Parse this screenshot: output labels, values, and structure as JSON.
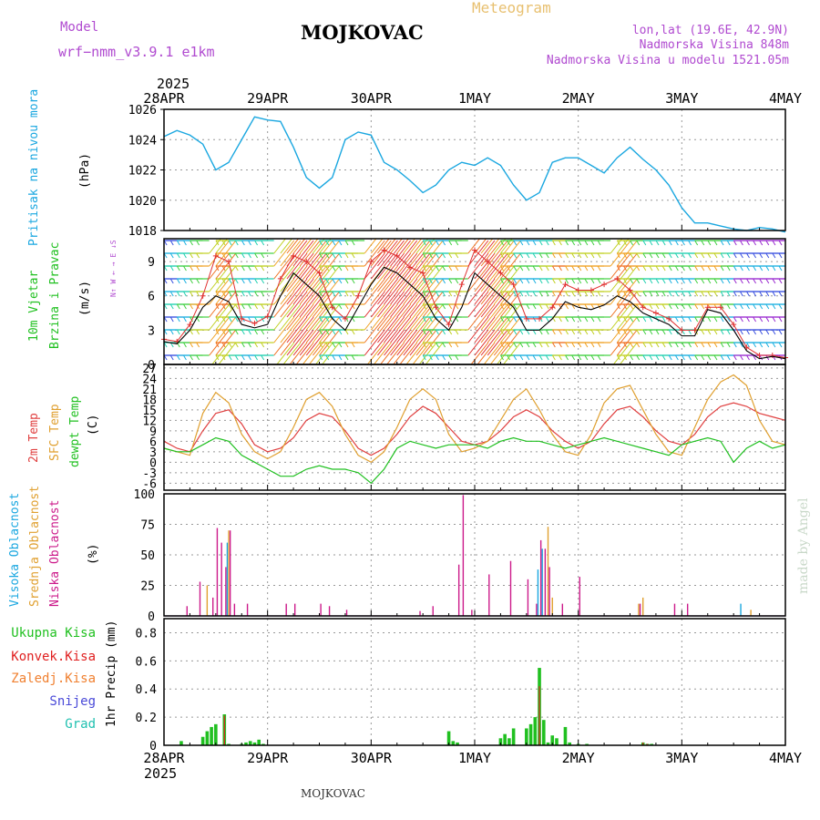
{
  "header": {
    "model_label": "Model",
    "model_name": "wrf−nmm_v3.9.1  e1km",
    "station": "MOJKOVAC",
    "title": "Meteogram",
    "coords": "lon,lat (19.6E, 42.9N)",
    "elevation": "Nadmorska Visina 848m",
    "model_elevation": "Nadmorska Visina u modelu 1521.05m"
  },
  "footer": {
    "station": "MOJKOVAC",
    "credit": "made by Angel"
  },
  "colors": {
    "pressure": "#1aa7e0",
    "title_purple": "#b04ad0",
    "title_gold": "#e8c070",
    "wind_speed": "#000000",
    "wind_gust": "#e03030",
    "temp_2m": "#e04040",
    "temp_sfc": "#e0a030",
    "dewpoint": "#20c020",
    "cloud_high": "#1aa7e0",
    "cloud_mid": "#e0a030",
    "cloud_low": "#cc1a8a",
    "precip_total": "#20c020",
    "precip_conv": "#e02020",
    "precip_freezing": "#f08030",
    "precip_snow": "#4a4ad8",
    "precip_hail": "#20c0b0"
  },
  "x_axis": {
    "year": "2025",
    "ticks": [
      "28APR",
      "29APR",
      "30APR",
      "1MAY",
      "2MAY",
      "3MAY",
      "4MAY"
    ]
  },
  "panels": {
    "pressure": {
      "label": "Pritisak na nivou mora",
      "unit": "(hPa)",
      "ticks": [
        "1018",
        "1020",
        "1022",
        "1024",
        "1026"
      ]
    },
    "wind": {
      "label1": "10m Vjetar",
      "label2": "Brzina i Pravac",
      "unit": "(m/s)",
      "ticks": [
        "0",
        "3",
        "6",
        "9"
      ],
      "compass": "N↑  W ← → E  ↓S"
    },
    "temperature": {
      "label1": "2m Temp",
      "label2": "SFC Temp",
      "label3": "dewpt Temp",
      "unit": "(C)",
      "ticks": [
        "-6",
        "-3",
        "0",
        "3",
        "6",
        "9",
        "12",
        "15",
        "18",
        "21",
        "24",
        "27"
      ]
    },
    "clouds": {
      "label1": "Visoka Oblacnost",
      "label2": "Srednja Oblacnost",
      "label3": "Niska Oblacnost",
      "unit": "(%)",
      "ticks": [
        "0",
        "25",
        "50",
        "75",
        "100"
      ]
    },
    "precip": {
      "legend": [
        "Ukupna Kisa",
        "Konvek.Kisa",
        "Zaledj.Kisa",
        "Snijeg",
        "Grad"
      ],
      "unit": "1hr Precip (mm)",
      "ticks": [
        "0",
        "0.2",
        "0.4",
        "0.6",
        "0.8"
      ]
    }
  },
  "chart_data": [
    {
      "type": "line",
      "title": "",
      "ylabel": "(hPa)",
      "ylim": [
        1018,
        1026
      ],
      "x_hours": [
        0,
        3,
        6,
        9,
        12,
        15,
        18,
        21,
        24,
        27,
        30,
        33,
        36,
        39,
        42,
        45,
        48,
        51,
        54,
        57,
        60,
        63,
        66,
        69,
        72,
        75,
        78,
        81,
        84,
        87,
        90,
        93,
        96,
        99,
        102,
        105,
        108,
        111,
        114,
        117,
        120,
        123,
        126,
        129,
        132,
        135,
        138,
        141,
        144
      ],
      "series": [
        {
          "values": [
            1024.2,
            1024.6,
            1024.3,
            1023.7,
            1022.0,
            1022.5,
            1024.0,
            1025.5,
            1025.3,
            1025.2,
            1023.5,
            1021.5,
            1020.8,
            1021.5,
            1024.0,
            1024.5,
            1024.3,
            1022.5,
            1022.0,
            1021.3,
            1020.5,
            1021.0,
            1022.0,
            1022.5,
            1022.3,
            1022.8,
            1022.3,
            1021.0,
            1020.0,
            1020.5,
            1022.5,
            1022.8,
            1022.8,
            1022.3,
            1021.8,
            1022.8,
            1023.5,
            1022.7,
            1022.0,
            1021.0,
            1019.5,
            1018.5,
            1018.5,
            1018.3,
            1018.1,
            1018.0,
            1018.2,
            1018.1,
            1017.9
          ]
        }
      ]
    },
    {
      "type": "line",
      "title": "",
      "ylabel": "(m/s)",
      "ylim": [
        0,
        11
      ],
      "x_hours": [
        0,
        3,
        6,
        9,
        12,
        15,
        18,
        21,
        24,
        27,
        30,
        33,
        36,
        39,
        42,
        45,
        48,
        51,
        54,
        57,
        60,
        63,
        66,
        69,
        72,
        75,
        78,
        81,
        84,
        87,
        90,
        93,
        96,
        99,
        102,
        105,
        108,
        111,
        114,
        117,
        120,
        123,
        126,
        129,
        132,
        135,
        138,
        141,
        144
      ],
      "series": [
        {
          "name": "wind speed",
          "values": [
            2,
            1.8,
            3,
            5,
            6,
            5.5,
            3.5,
            3.2,
            3.5,
            6,
            8,
            7,
            6,
            4,
            3,
            5,
            7,
            8.5,
            8,
            7,
            6,
            4,
            3,
            5,
            8,
            7,
            6,
            5,
            3,
            3,
            4,
            5.5,
            5,
            4.8,
            5.2,
            6,
            5.5,
            4.5,
            4,
            3.5,
            2.5,
            2.5,
            4.8,
            4.5,
            3,
            1.2,
            0.5,
            0.7,
            0.5
          ]
        },
        {
          "name": "wind gust",
          "values": [
            2.2,
            2,
            3.5,
            6,
            9.5,
            9,
            4,
            3.6,
            4.2,
            7.5,
            9.5,
            9,
            8,
            5,
            4,
            6,
            9,
            10,
            9.5,
            8.5,
            8,
            5,
            3.5,
            7,
            10,
            9,
            8,
            7,
            4,
            4,
            5,
            7,
            6.5,
            6.5,
            7,
            7.5,
            6.5,
            5,
            4.5,
            4,
            3,
            3,
            5,
            5,
            3.5,
            1.5,
            0.8,
            0.8,
            0.6
          ]
        }
      ]
    },
    {
      "type": "line",
      "title": "",
      "ylabel": "(C)",
      "ylim": [
        -8,
        28
      ],
      "x_hours": [
        0,
        3,
        6,
        9,
        12,
        15,
        18,
        21,
        24,
        27,
        30,
        33,
        36,
        39,
        42,
        45,
        48,
        51,
        54,
        57,
        60,
        63,
        66,
        69,
        72,
        75,
        78,
        81,
        84,
        87,
        90,
        93,
        96,
        99,
        102,
        105,
        108,
        111,
        114,
        117,
        120,
        123,
        126,
        129,
        132,
        135,
        138,
        141,
        144
      ],
      "series": [
        {
          "name": "2m Temp",
          "values": [
            6,
            4,
            3,
            9,
            14,
            15,
            11,
            5,
            3,
            4,
            7,
            12,
            14,
            13,
            9,
            4,
            2,
            4,
            8,
            13,
            16,
            14,
            10,
            6,
            5,
            6,
            9,
            13,
            15,
            13,
            9,
            6,
            4,
            6,
            11,
            15,
            16,
            13,
            9,
            6,
            5,
            8,
            13,
            16,
            17,
            16,
            14,
            13,
            12
          ]
        },
        {
          "name": "SFC Temp",
          "values": [
            4,
            3,
            2,
            14,
            20,
            17,
            8,
            3,
            1,
            3,
            10,
            18,
            20,
            16,
            8,
            2,
            0,
            3,
            10,
            18,
            21,
            18,
            8,
            3,
            4,
            6,
            12,
            18,
            21,
            15,
            8,
            3,
            2,
            8,
            17,
            21,
            22,
            15,
            8,
            3,
            2,
            10,
            18,
            23,
            25,
            22,
            12,
            6,
            5
          ]
        },
        {
          "name": "dewpt Temp",
          "values": [
            4,
            3,
            3,
            5,
            7,
            6,
            2,
            0,
            -2,
            -4,
            -4,
            -2,
            -1,
            -2,
            -2,
            -3,
            -6,
            -2,
            4,
            6,
            5,
            4,
            5,
            5,
            5,
            4,
            6,
            7,
            6,
            6,
            5,
            4,
            5,
            6,
            7,
            6,
            5,
            4,
            3,
            2,
            5,
            6,
            7,
            6,
            0,
            4,
            6,
            4,
            5
          ]
        }
      ]
    },
    {
      "type": "bar",
      "title": "",
      "ylabel": "(%)",
      "ylim": [
        0,
        100
      ],
      "x_hours": [
        5,
        8,
        10,
        11,
        12,
        13,
        14,
        15,
        16,
        19,
        28,
        30,
        36,
        38,
        42,
        59,
        62,
        68,
        69,
        71,
        75,
        80,
        84,
        86,
        87,
        88,
        89,
        90,
        92,
        96,
        110,
        111,
        118,
        121,
        134,
        136
      ],
      "series": [
        {
          "name": "Visoka Oblacnost",
          "values": [
            0,
            0,
            0,
            0,
            0,
            0,
            0,
            60,
            0,
            0,
            0,
            0,
            0,
            0,
            0,
            0,
            0,
            0,
            0,
            0,
            0,
            0,
            0,
            0,
            38,
            55,
            0,
            0,
            0,
            0,
            0,
            0,
            0,
            0,
            10,
            0
          ]
        },
        {
          "name": "Srednja Oblacnost",
          "values": [
            0,
            0,
            25,
            0,
            0,
            0,
            0,
            70,
            0,
            0,
            0,
            0,
            0,
            0,
            0,
            0,
            0,
            0,
            0,
            0,
            0,
            0,
            0,
            0,
            0,
            0,
            73,
            15,
            0,
            0,
            10,
            15,
            0,
            0,
            0,
            5
          ]
        },
        {
          "name": "Niska Oblacnost",
          "values": [
            8,
            28,
            0,
            15,
            72,
            60,
            40,
            70,
            10,
            10,
            10,
            10,
            10,
            8,
            5,
            4,
            8,
            42,
            99,
            5,
            34,
            45,
            30,
            10,
            62,
            55,
            40,
            0,
            10,
            32,
            10,
            0,
            10,
            10,
            0,
            0
          ]
        }
      ]
    },
    {
      "type": "bar",
      "title": "",
      "ylabel": "1hr Precip (mm)",
      "ylim": [
        0,
        0.9
      ],
      "x_hours": [
        4,
        9,
        10,
        11,
        12,
        14,
        15,
        18,
        19,
        20,
        21,
        22,
        23,
        24,
        66,
        67,
        68,
        78,
        79,
        80,
        81,
        84,
        85,
        86,
        87,
        88,
        89,
        90,
        91,
        93,
        94,
        96,
        98,
        111,
        112,
        113
      ],
      "series": [
        {
          "name": "Ukupna Kisa",
          "values": [
            0.03,
            0.06,
            0.1,
            0.13,
            0.15,
            0.22,
            0.01,
            0.01,
            0.02,
            0.03,
            0.02,
            0.04,
            0.01,
            0.0,
            0.1,
            0.03,
            0.02,
            0.05,
            0.08,
            0.05,
            0.12,
            0.12,
            0.15,
            0.2,
            0.55,
            0.18,
            0.02,
            0.07,
            0.05,
            0.13,
            0.02,
            0.01,
            0.01,
            0.02,
            0.01,
            0.01
          ]
        },
        {
          "name": "Konvek.Kisa",
          "values": [
            0.0,
            0.0,
            0.0,
            0.0,
            0.0,
            0.21,
            0.0,
            0.0,
            0.0,
            0.0,
            0.0,
            0.0,
            0.0,
            0.0,
            0.0,
            0.0,
            0.0,
            0.0,
            0.0,
            0.0,
            0.0,
            0.0,
            0.0,
            0.0,
            0.42,
            0.0,
            0.0,
            0.0,
            0.0,
            0.0,
            0.0,
            0.0,
            0.0,
            0.02,
            0.01,
            0.0
          ]
        }
      ]
    }
  ]
}
